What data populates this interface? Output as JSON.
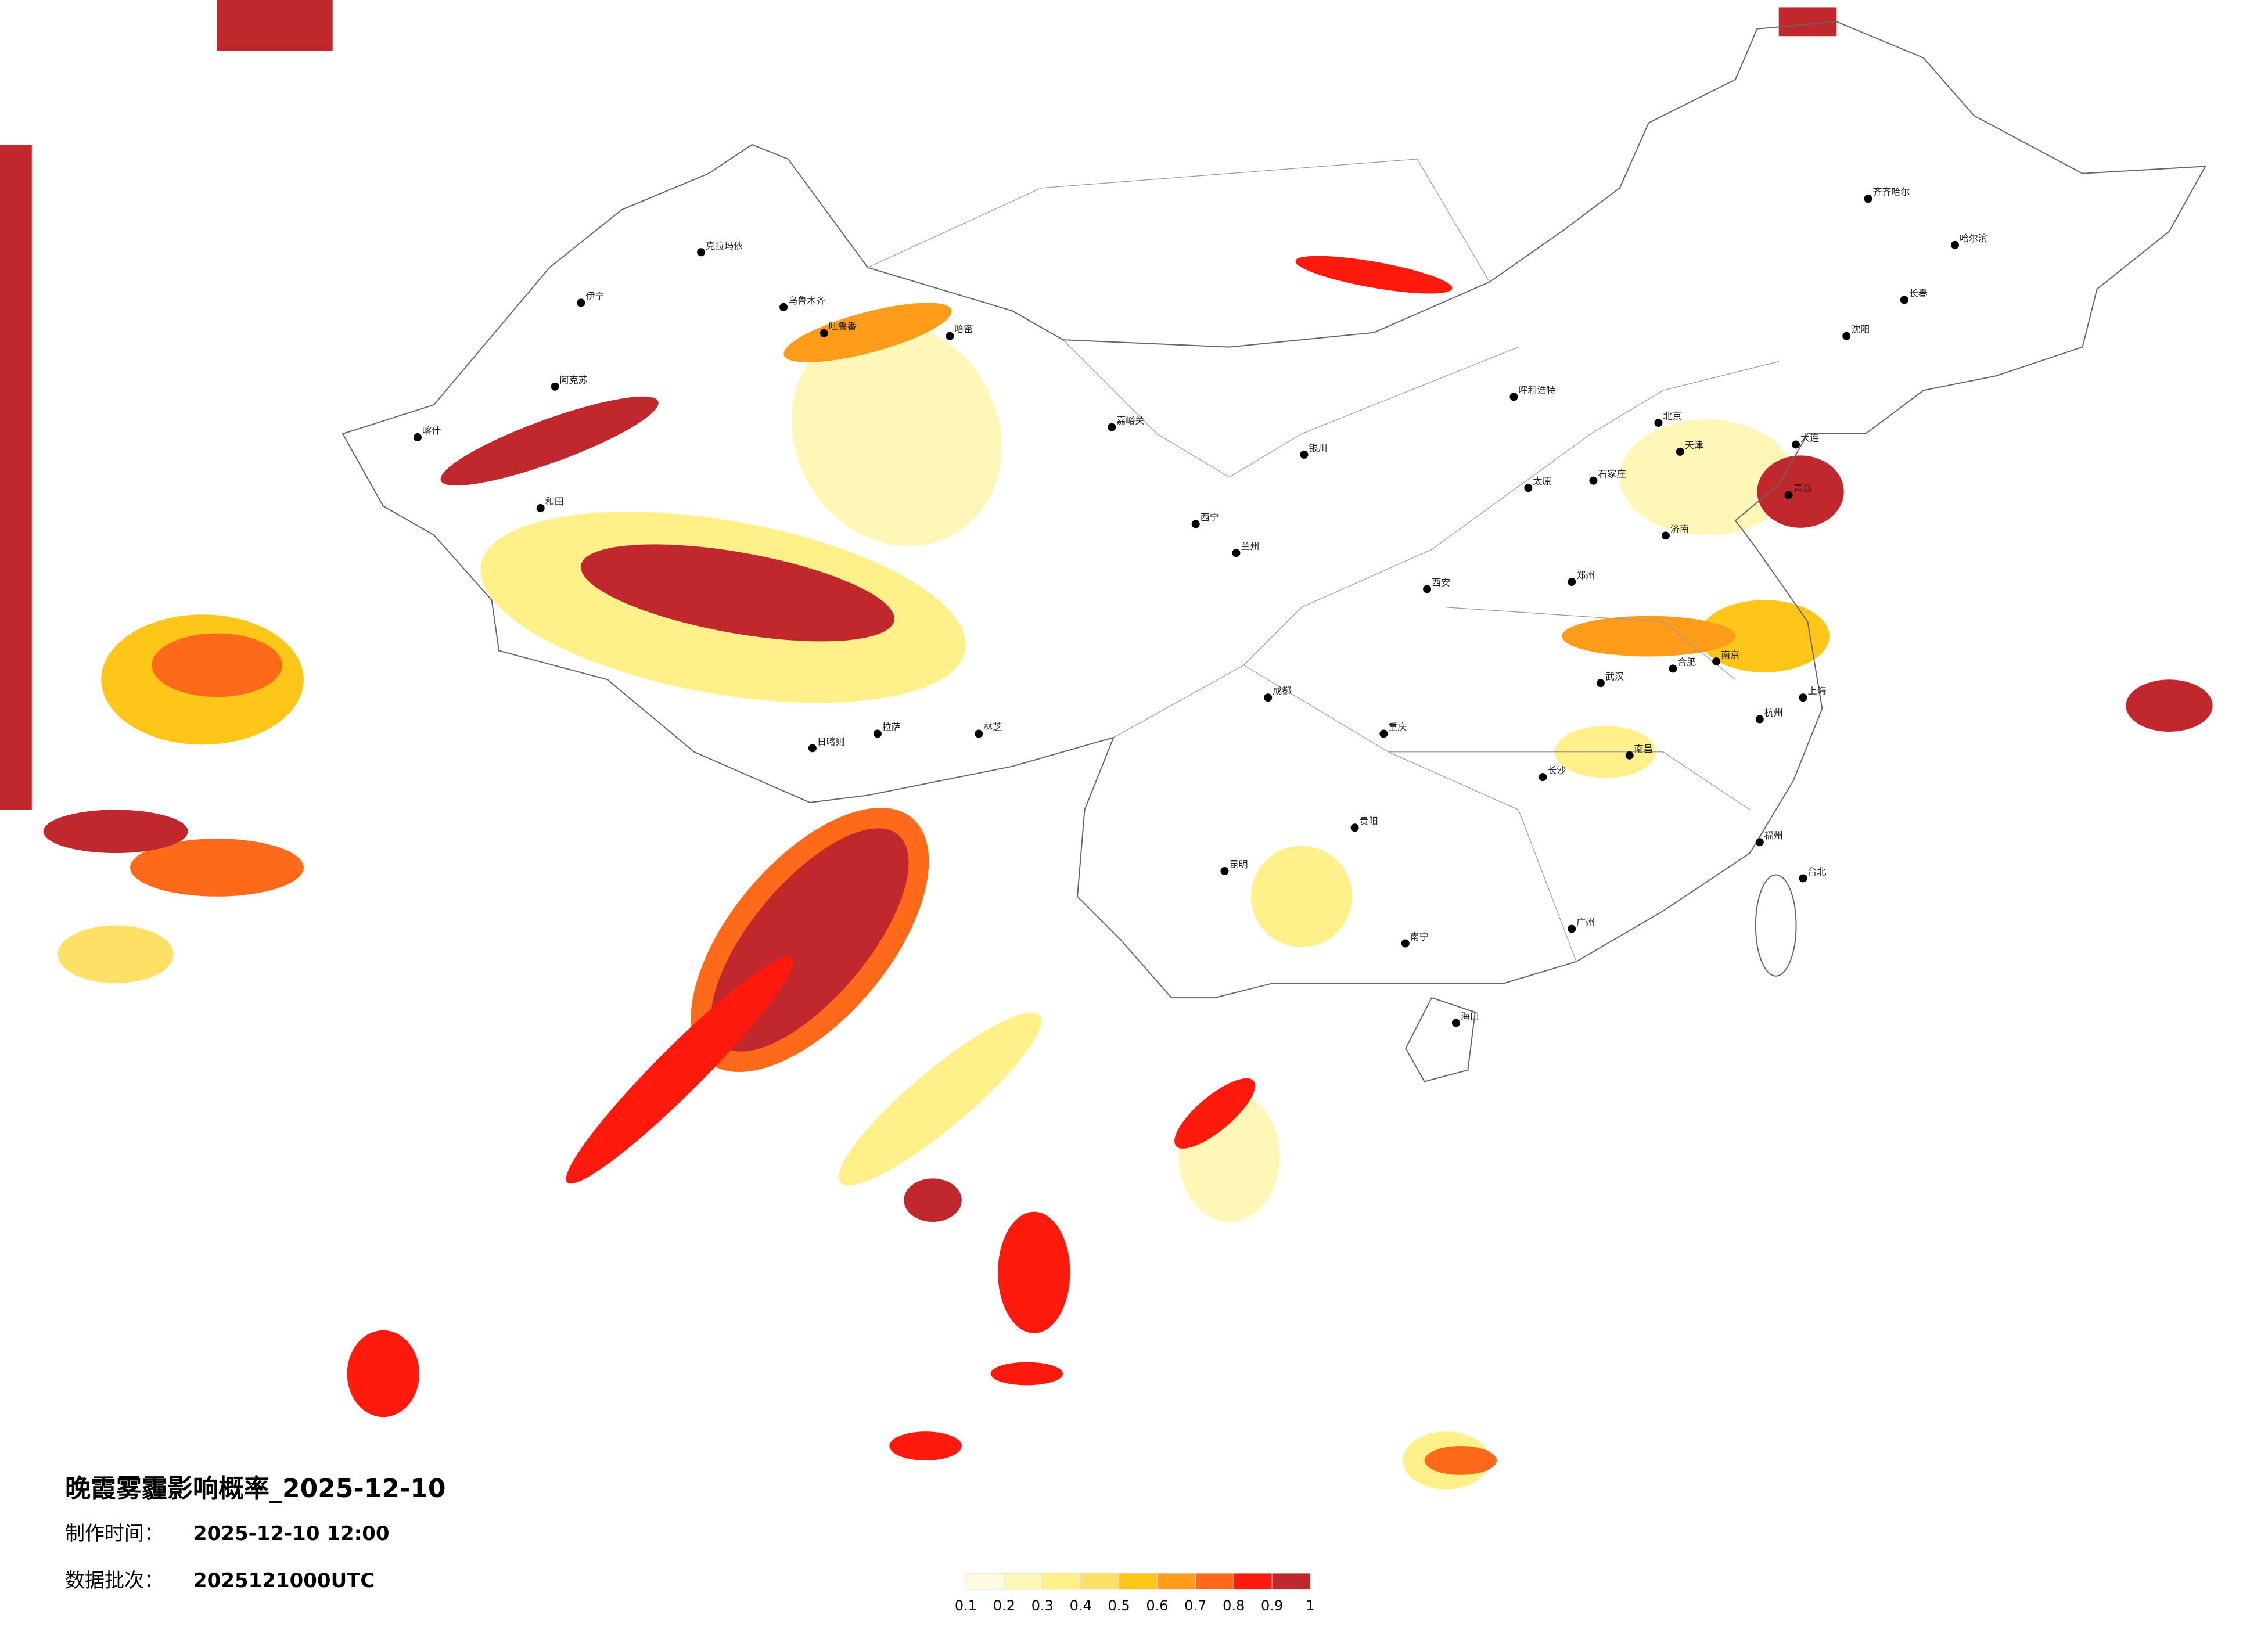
{
  "title": "晚霞雾霾影响概率_2025-12-10",
  "made_time": {
    "label": "制作时间：",
    "value": "2025-12-10 12:00"
  },
  "batch": {
    "label": "数据批次：",
    "value": "2025121000UTC"
  },
  "legend": {
    "ticks": [
      0.1,
      0.2,
      0.3,
      0.4,
      0.5,
      0.6,
      0.7,
      0.8,
      0.9,
      1
    ],
    "colors": [
      "#fffbe3",
      "#fff7b8",
      "#fff08a",
      "#ffe066",
      "#ffc61a",
      "#ff9d1a",
      "#ff6a1a",
      "#ff1a0d",
      "#c0282d"
    ]
  },
  "cities": [
    "克拉玛依",
    "伊宁",
    "阿克苏",
    "喀什",
    "和田",
    "乌鲁木齐",
    "吐鲁番",
    "哈密",
    "嘉峪关",
    "西宁",
    "兰州",
    "银川",
    "呼和浩特",
    "北京",
    "天津",
    "石家庄",
    "太原",
    "济南",
    "郑州",
    "西安",
    "成都",
    "重庆",
    "武汉",
    "长沙",
    "南京",
    "上海",
    "杭州",
    "合肥",
    "南昌",
    "福州",
    "台北",
    "广州",
    "南宁",
    "海口",
    "昆明",
    "贵阳",
    "拉萨",
    "日喀则",
    "林芝",
    "沈阳",
    "长春",
    "哈尔滨",
    "齐齐哈尔",
    "大连",
    "青岛"
  ]
}
